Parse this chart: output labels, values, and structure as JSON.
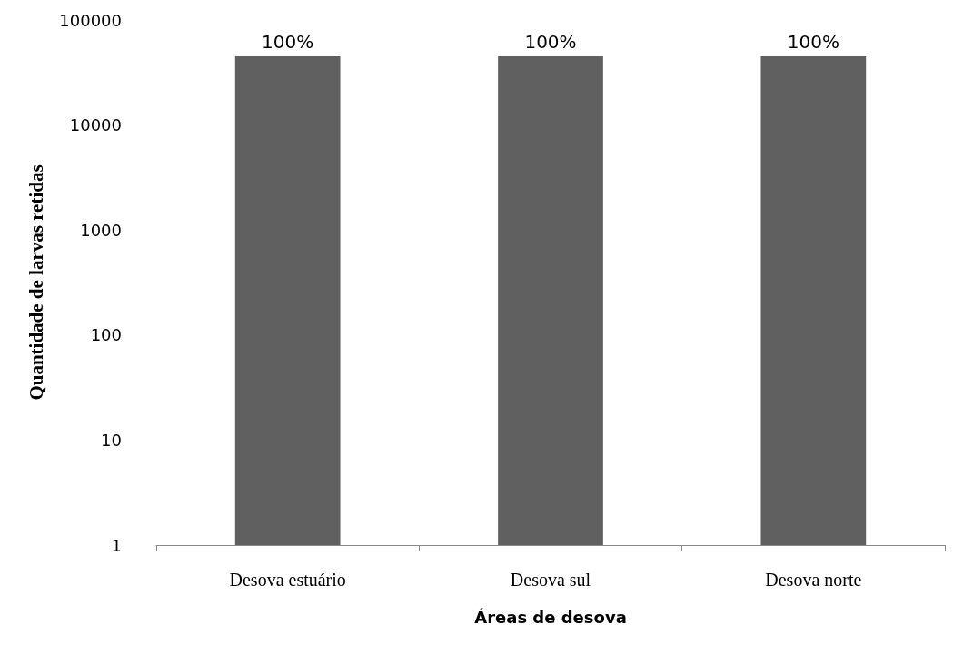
{
  "chart_data": {
    "type": "bar",
    "xlabel": "Áreas de desova",
    "ylabel": "Quantidade de larvas retidas",
    "categories": [
      "Desova estuário",
      "Desova sul",
      "Desova norte"
    ],
    "values": [
      45000,
      45000,
      45000
    ],
    "color": "#606060",
    "annotations": [
      {
        "text": "100%",
        "x": "Desova estuário",
        "y": 45000
      },
      {
        "text": "100%",
        "x": "Desova sul",
        "y": 45000
      },
      {
        "text": "100%",
        "x": "Desova norte",
        "y": 45000
      }
    ],
    "log": true,
    "ylim": [
      1,
      100000
    ],
    "yticks": [
      1,
      10,
      100,
      1000,
      10000,
      100000
    ],
    "grid": false
  }
}
